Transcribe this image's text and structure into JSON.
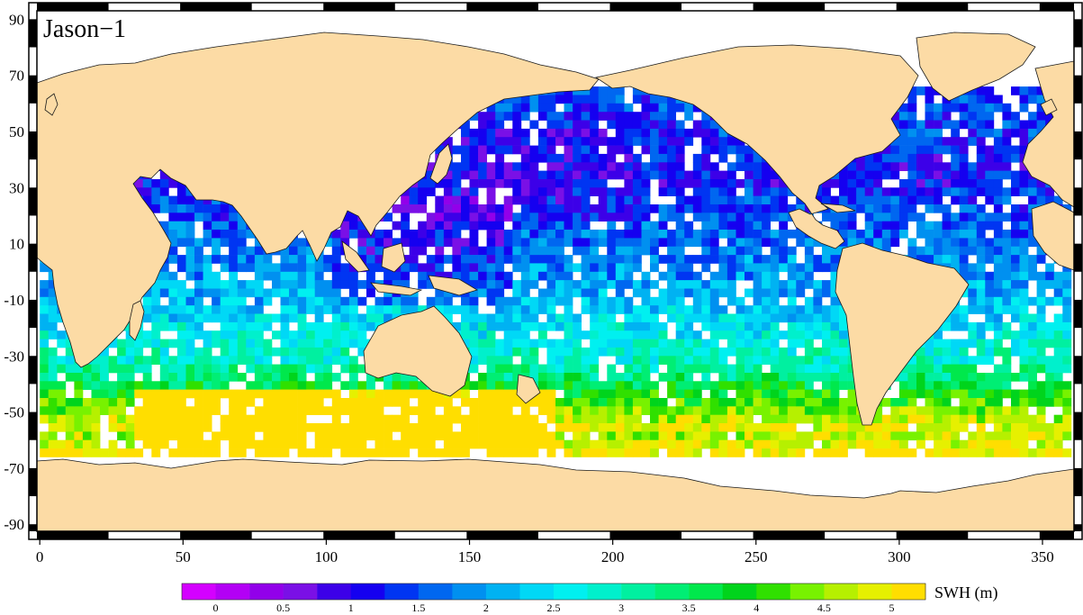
{
  "title": "Jason−1",
  "colorbar": {
    "label": "SWH (m)",
    "tick_labels": [
      "0",
      "0.5",
      "1",
      "1.5",
      "2",
      "2.5",
      "3",
      "3.5",
      "4",
      "4.5",
      "5"
    ],
    "tick_values": [
      0,
      0.5,
      1,
      1.5,
      2,
      2.5,
      3,
      3.5,
      4,
      4.5,
      5
    ],
    "range": [
      -0.25,
      5.25
    ],
    "step": 0.25,
    "colors": [
      "#d400ff",
      "#b300f5",
      "#9200ea",
      "#7a10e6",
      "#3c00e8",
      "#1500f0",
      "#0035f2",
      "#0067f0",
      "#0090f0",
      "#00b2f2",
      "#00d8f6",
      "#00f0f0",
      "#00f0cc",
      "#00f0a0",
      "#00ee74",
      "#00e84c",
      "#00d41c",
      "#30e000",
      "#78f200",
      "#b6f000",
      "#e6f000",
      "#ffde00",
      "#ffae00",
      "#ff8000",
      "#ff5400",
      "#ff2200"
    ]
  },
  "axes": {
    "x_ticks": [
      "0",
      "50",
      "100",
      "150",
      "200",
      "250",
      "300",
      "350"
    ],
    "x_values": [
      0,
      50,
      100,
      150,
      200,
      250,
      300,
      350
    ],
    "y_ticks": [
      "90",
      "70",
      "50",
      "30",
      "10",
      "-10",
      "-30",
      "-50",
      "-70",
      "-90"
    ],
    "y_values": [
      90,
      70,
      50,
      30,
      10,
      -10,
      -30,
      -50,
      -70,
      -90
    ],
    "x_range": [
      -1,
      361
    ],
    "y_range": [
      -92.5,
      93
    ]
  },
  "colors": {
    "land": "#fcdba5",
    "ocean_missing": "#ffffff",
    "frame": "#000000"
  }
}
